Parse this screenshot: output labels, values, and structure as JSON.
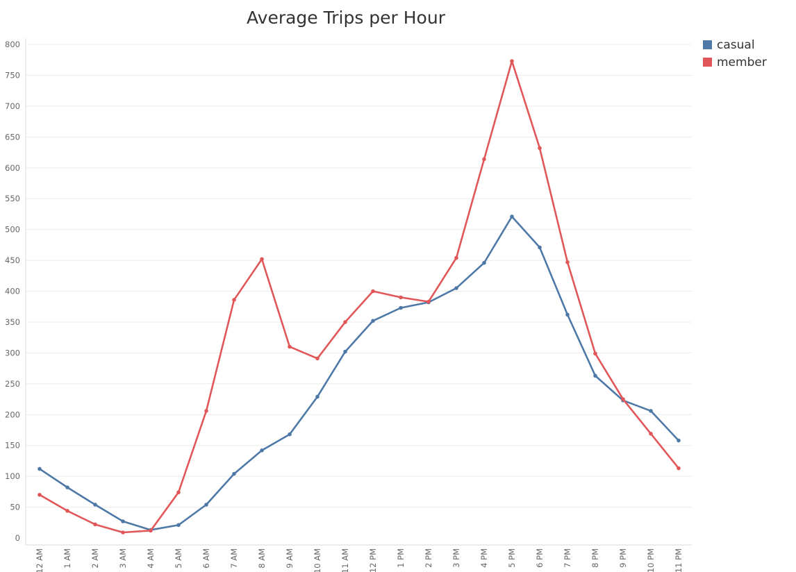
{
  "chart_data": {
    "type": "line",
    "title": "Average Trips per Hour",
    "xlabel": "",
    "ylabel": "",
    "categories": [
      "12 AM",
      "1 AM",
      "2 AM",
      "3 AM",
      "4 AM",
      "5 AM",
      "6 AM",
      "7 AM",
      "8 AM",
      "9 AM",
      "10 AM",
      "11 AM",
      "12 PM",
      "1 PM",
      "2 PM",
      "3 PM",
      "4 PM",
      "5 PM",
      "6 PM",
      "7 PM",
      "8 PM",
      "9 PM",
      "10 PM",
      "11 PM"
    ],
    "yticks": [
      0,
      50,
      100,
      150,
      200,
      250,
      300,
      350,
      400,
      450,
      500,
      550,
      600,
      650,
      700,
      750,
      800
    ],
    "ylim": [
      0,
      800
    ],
    "grid": true,
    "legend_position": "top-right",
    "series": [
      {
        "name": "casual",
        "color": "#4e79a7",
        "values": [
          112,
          82,
          54,
          27,
          13,
          21,
          54,
          104,
          142,
          168,
          229,
          302,
          352,
          373,
          382,
          405,
          446,
          521,
          471,
          362,
          263,
          223,
          206,
          158
        ]
      },
      {
        "name": "member",
        "color": "#e15759",
        "values": [
          70,
          44,
          22,
          9,
          12,
          74,
          206,
          386,
          452,
          310,
          291,
          350,
          400,
          390,
          383,
          454,
          614,
          773,
          632,
          447,
          299,
          225,
          169,
          113
        ]
      }
    ]
  }
}
